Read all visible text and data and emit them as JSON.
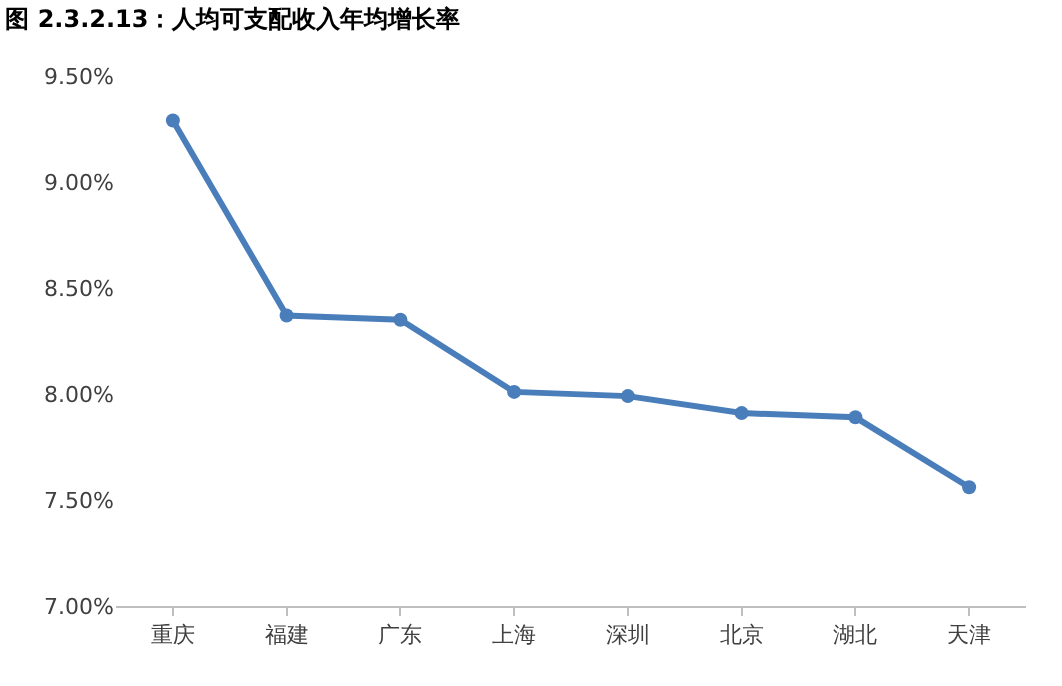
{
  "chart_data": {
    "type": "line",
    "title": "图 2.3.2.13：人均可支配收入年均增长率",
    "categories": [
      "重庆",
      "福建",
      "广东",
      "上海",
      "深圳",
      "北京",
      "湖北",
      "天津"
    ],
    "series": [
      {
        "color": "#4a7ebb",
        "values": [
          9.29,
          8.37,
          8.35,
          8.01,
          7.99,
          7.91,
          7.89,
          7.56
        ]
      }
    ],
    "ylim": [
      7.0,
      9.5
    ],
    "yticks": [
      {
        "value": 7.0,
        "label": "7.00%"
      },
      {
        "value": 7.5,
        "label": "7.50%"
      },
      {
        "value": 8.0,
        "label": "8.00%"
      },
      {
        "value": 8.5,
        "label": "8.50%"
      },
      {
        "value": 9.0,
        "label": "9.00%"
      },
      {
        "value": 9.5,
        "label": "9.50%"
      }
    ],
    "marker": "circle",
    "line_style": "solid"
  }
}
